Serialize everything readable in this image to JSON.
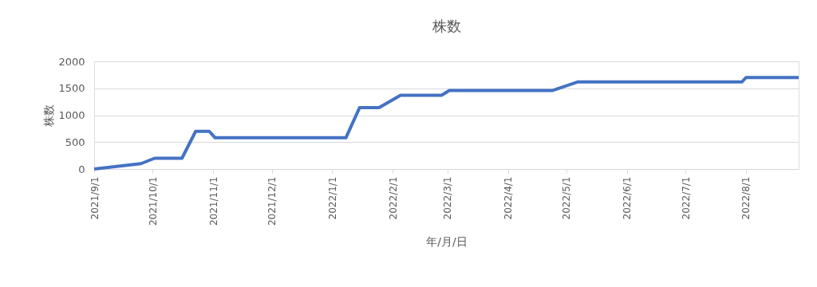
{
  "chart_data": {
    "type": "line",
    "title": "株数",
    "xlabel": "年/月/日",
    "ylabel": "株数",
    "x": [
      "2021-09-01",
      "2021-09-25",
      "2021-10-02",
      "2021-10-16",
      "2021-10-23",
      "2021-10-30",
      "2021-11-02",
      "2022-01-08",
      "2022-01-15",
      "2022-01-25",
      "2022-02-05",
      "2022-02-26",
      "2022-03-02",
      "2022-04-24",
      "2022-05-07",
      "2022-07-30",
      "2022-08-01",
      "2022-08-28"
    ],
    "series": [
      {
        "color": "#4472c4",
        "values": [
          0,
          100,
          200,
          200,
          700,
          700,
          580,
          580,
          1140,
          1140,
          1370,
          1370,
          1460,
          1460,
          1620,
          1620,
          1700,
          1700
        ]
      }
    ],
    "xlim": [
      "2021-09-01",
      "2022-08-28"
    ],
    "xticks": [
      {
        "value": "2021-09-01",
        "label": "2021/9/1"
      },
      {
        "value": "2021-10-01",
        "label": "2021/10/1"
      },
      {
        "value": "2021-11-01",
        "label": "2021/11/1"
      },
      {
        "value": "2021-12-01",
        "label": "2021/12/1"
      },
      {
        "value": "2022-01-01",
        "label": "2022/1/1"
      },
      {
        "value": "2022-02-01",
        "label": "2022/2/1"
      },
      {
        "value": "2022-03-01",
        "label": "2022/3/1"
      },
      {
        "value": "2022-04-01",
        "label": "2022/4/1"
      },
      {
        "value": "2022-05-01",
        "label": "2022/5/1"
      },
      {
        "value": "2022-06-01",
        "label": "2022/6/1"
      },
      {
        "value": "2022-07-01",
        "label": "2022/7/1"
      },
      {
        "value": "2022-08-01",
        "label": "2022/8/1"
      }
    ],
    "ylim": [
      0,
      2000
    ],
    "yticks": [
      0,
      500,
      1000,
      1500,
      2000
    ],
    "grid": "y",
    "legend": false,
    "marker": "none",
    "line_style": "solid"
  }
}
